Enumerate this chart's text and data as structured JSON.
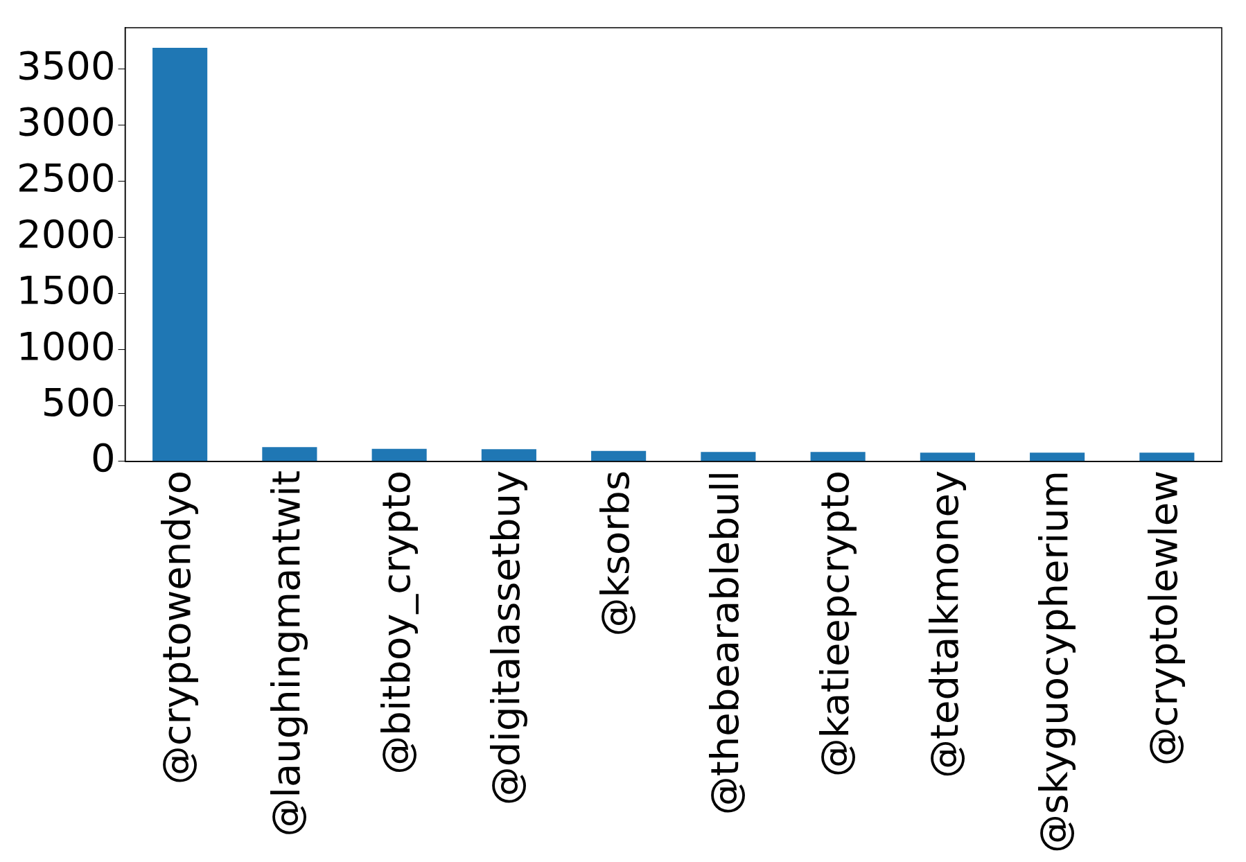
{
  "chart_data": {
    "type": "bar",
    "categories": [
      "@cryptowendyo",
      "@laughingmantwit",
      "@bitboy_crypto",
      "@digitalassetbuy",
      "@ksorbs",
      "@thebearablebull",
      "@katieepcrypto",
      "@tedtalkmoney",
      "@skyguocypherium",
      "@cryptolewlew"
    ],
    "values": [
      3690,
      128,
      113,
      109,
      94,
      84,
      84,
      79,
      79,
      79
    ],
    "color": "#1f77b4",
    "ylim": [
      0,
      3870
    ],
    "yticks": [
      0,
      500,
      1000,
      1500,
      2000,
      2500,
      3000,
      3500
    ],
    "grid": false,
    "legend": false
  }
}
